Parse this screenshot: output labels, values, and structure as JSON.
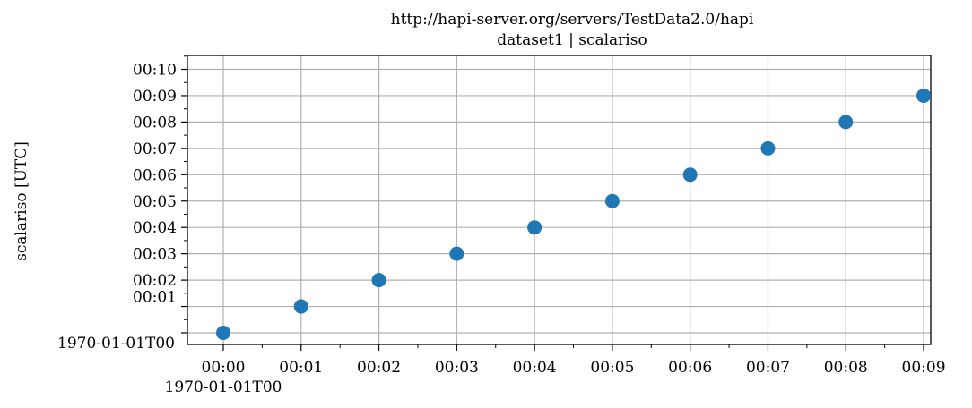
{
  "chart_data": {
    "type": "scatter",
    "title": "http://hapi-server.org/servers/TestData2.0/hapi",
    "subtitle": "dataset1 | scalariso",
    "xlabel": "",
    "ylabel": "scalariso [UTC]",
    "x_axis_start_label": "1970-01-01T00",
    "y_axis_start_label": "1970-01-01T00",
    "x": [
      "00:00",
      "00:01",
      "00:02",
      "00:03",
      "00:04",
      "00:05",
      "00:06",
      "00:07",
      "00:08",
      "00:09"
    ],
    "y": [
      "00:00",
      "00:01",
      "00:02",
      "00:03",
      "00:04",
      "00:05",
      "00:06",
      "00:07",
      "00:08",
      "00:09"
    ],
    "x_ticks": [
      "00:00",
      "00:01",
      "00:02",
      "00:03",
      "00:04",
      "00:05",
      "00:06",
      "00:07",
      "00:08",
      "00:09"
    ],
    "y_ticks": [
      "00:01",
      "00:02",
      "00:03",
      "00:04",
      "00:05",
      "00:06",
      "00:07",
      "00:08",
      "00:09",
      "00:10"
    ],
    "grid": true,
    "legend": "none",
    "marker_color": "#1f77b4"
  }
}
